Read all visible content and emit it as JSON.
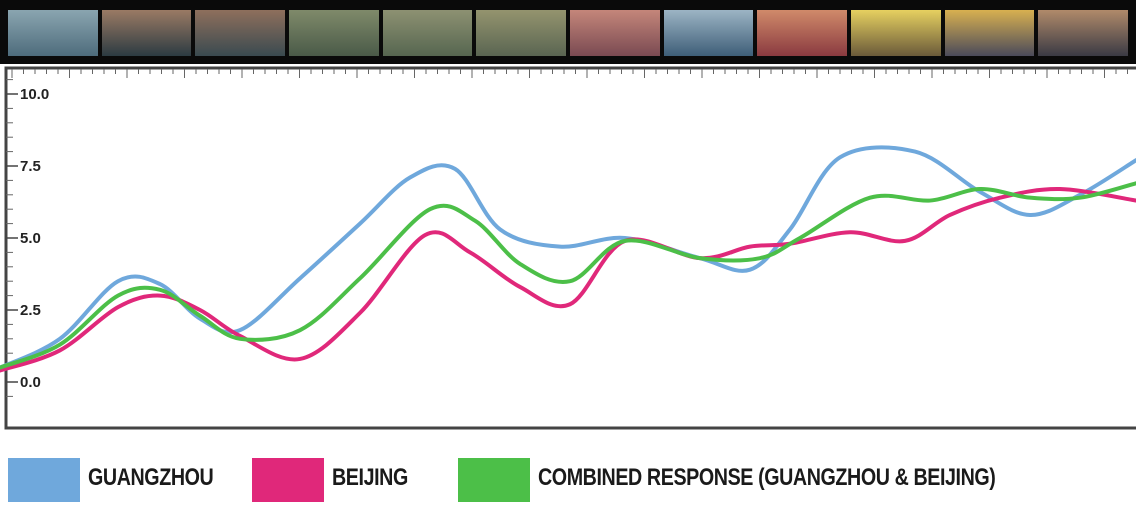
{
  "colors": {
    "guangzhou": "#6fa8dc",
    "beijing": "#e0287a",
    "combined": "#4cbf48"
  },
  "chart_data": {
    "type": "line",
    "xlabel": "",
    "ylabel": "",
    "ylim": [
      -0.6,
      11.2
    ],
    "xlim": [
      0,
      1136
    ],
    "yticks": [
      "0.0",
      "2.5",
      "5.0",
      "7.5",
      "10.0"
    ],
    "ytick_values": [
      0.0,
      2.5,
      5.0,
      7.5,
      10.0
    ],
    "grid": false,
    "legend_placement": "bottom",
    "series": [
      {
        "name": "GUANGZHOU",
        "x": [
          0,
          60,
          118,
          160,
          200,
          240,
          300,
          360,
          410,
          455,
          500,
          560,
          625,
          700,
          750,
          790,
          840,
          915,
          980,
          1030,
          1080,
          1136
        ],
        "y": [
          0.5,
          1.5,
          3.5,
          3.4,
          2.2,
          1.8,
          3.6,
          5.5,
          7.1,
          7.4,
          5.3,
          4.7,
          5.0,
          4.3,
          3.9,
          5.3,
          7.8,
          8.0,
          6.6,
          5.8,
          6.5,
          7.7
        ]
      },
      {
        "name": "BEIJING",
        "x": [
          0,
          60,
          118,
          160,
          200,
          240,
          300,
          360,
          425,
          470,
          520,
          570,
          625,
          700,
          750,
          790,
          850,
          905,
          950,
          1000,
          1060,
          1136
        ],
        "y": [
          0.4,
          1.1,
          2.6,
          3.0,
          2.5,
          1.6,
          0.8,
          2.4,
          5.1,
          4.5,
          3.3,
          2.7,
          4.9,
          4.3,
          4.7,
          4.8,
          5.2,
          4.9,
          5.8,
          6.4,
          6.7,
          6.3
        ]
      },
      {
        "name": "COMBINED RESPONSE (GUANGZHOU & BEIJING)",
        "x": [
          0,
          60,
          118,
          160,
          200,
          240,
          300,
          360,
          430,
          475,
          520,
          570,
          625,
          700,
          760,
          800,
          870,
          930,
          980,
          1030,
          1080,
          1136
        ],
        "y": [
          0.5,
          1.3,
          3.0,
          3.2,
          2.3,
          1.5,
          1.8,
          3.6,
          6.0,
          5.6,
          4.1,
          3.5,
          4.9,
          4.3,
          4.3,
          5.0,
          6.4,
          6.3,
          6.7,
          6.4,
          6.4,
          6.9
        ]
      }
    ]
  },
  "legend": [
    {
      "key": "guangzhou",
      "label": "GUANGZHOU"
    },
    {
      "key": "beijing",
      "label": "BEIJING"
    },
    {
      "key": "combined",
      "label": "COMBINED RESPONSE (GUANGZHOU & BEIJING)"
    }
  ],
  "filmstrip": {
    "frames": [
      {
        "name": "sea-shore-frame",
        "tone": [
          "#4e6c7c",
          "#8aa5b0"
        ]
      },
      {
        "name": "portrait-frame-1",
        "tone": [
          "#2c3b42",
          "#9a7a64"
        ]
      },
      {
        "name": "portrait-frame-2",
        "tone": [
          "#3a4a50",
          "#8e6f5c"
        ]
      },
      {
        "name": "field-frame-1",
        "tone": [
          "#4a5a48",
          "#7f8a6a"
        ]
      },
      {
        "name": "field-frame-2",
        "tone": [
          "#566650",
          "#8d9172"
        ]
      },
      {
        "name": "field-frame-3",
        "tone": [
          "#5a6552",
          "#94946e"
        ]
      },
      {
        "name": "crowd-frame-1",
        "tone": [
          "#7a4a52",
          "#c4867a"
        ]
      },
      {
        "name": "sea-frame-2",
        "tone": [
          "#3e5e78",
          "#9cb4c4"
        ]
      },
      {
        "name": "crowd-frame-2",
        "tone": [
          "#8a3a40",
          "#d08a6a"
        ]
      },
      {
        "name": "sign-frame",
        "tone": [
          "#6a5a3a",
          "#e6d060"
        ]
      },
      {
        "name": "crowd-frame-3",
        "tone": [
          "#4a4a5a",
          "#d8b050"
        ]
      },
      {
        "name": "crowd-frame-4",
        "tone": [
          "#3a3a44",
          "#b08a6a"
        ]
      }
    ]
  }
}
